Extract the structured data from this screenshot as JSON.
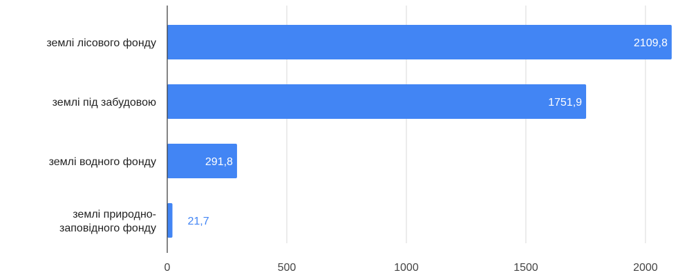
{
  "chart_data": {
    "type": "bar",
    "orientation": "horizontal",
    "categories": [
      "землі лісового фонду",
      "землі під забудовою",
      "землі водного фонду",
      "землі природно-заповідного фонду"
    ],
    "category_label_lines": [
      [
        "землі лісового фонду"
      ],
      [
        "землі під забудовою"
      ],
      [
        "землі водного фонду"
      ],
      [
        "землі природно-",
        "заповідного фонду"
      ]
    ],
    "values": [
      2109.8,
      1751.9,
      291.8,
      21.7
    ],
    "data_labels": [
      "2109,8",
      "1751,9",
      "291,8",
      "21,7"
    ],
    "x_ticks": [
      0,
      500,
      1000,
      1500,
      2000
    ],
    "x_tick_labels": [
      "0",
      "500",
      "1000",
      "1500",
      "2000"
    ],
    "xlim": [
      0,
      2090
    ],
    "grid": true,
    "bar_color": "#4285f4",
    "label_inside_color": "#ffffff",
    "label_outside_color": "#4285f4",
    "gridline_color": "#d9d9d9",
    "axis_color": "#333333"
  }
}
